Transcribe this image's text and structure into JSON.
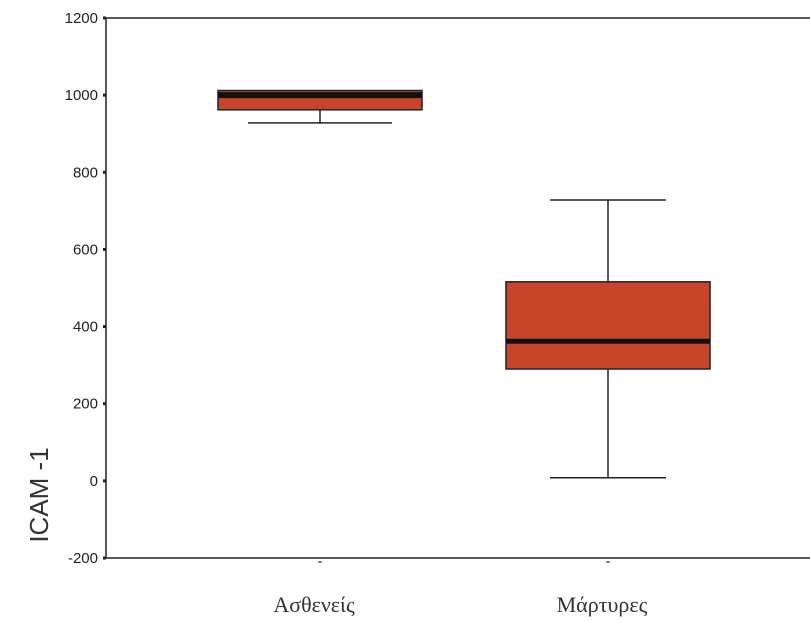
{
  "chart_data": {
    "type": "box",
    "ylabel": "ICAM -1",
    "ylim": [
      -200,
      1200
    ],
    "yticks": [
      1200,
      1000,
      800,
      600,
      400,
      200,
      0,
      -200
    ],
    "categories": [
      "Ασθενείς",
      "Μάρτυρες"
    ],
    "boxes": [
      {
        "category": "Ασθενείς",
        "whisker_low": 928,
        "q1": 962,
        "median": 1000,
        "q3": 1012,
        "whisker_high": 1012
      },
      {
        "category": "Μάρτυρες",
        "whisker_low": 8,
        "q1": 290,
        "median": 362,
        "q3": 516,
        "whisker_high": 728
      }
    ],
    "box_color": "#c8452c",
    "median_color": "#111111",
    "grid": false
  }
}
